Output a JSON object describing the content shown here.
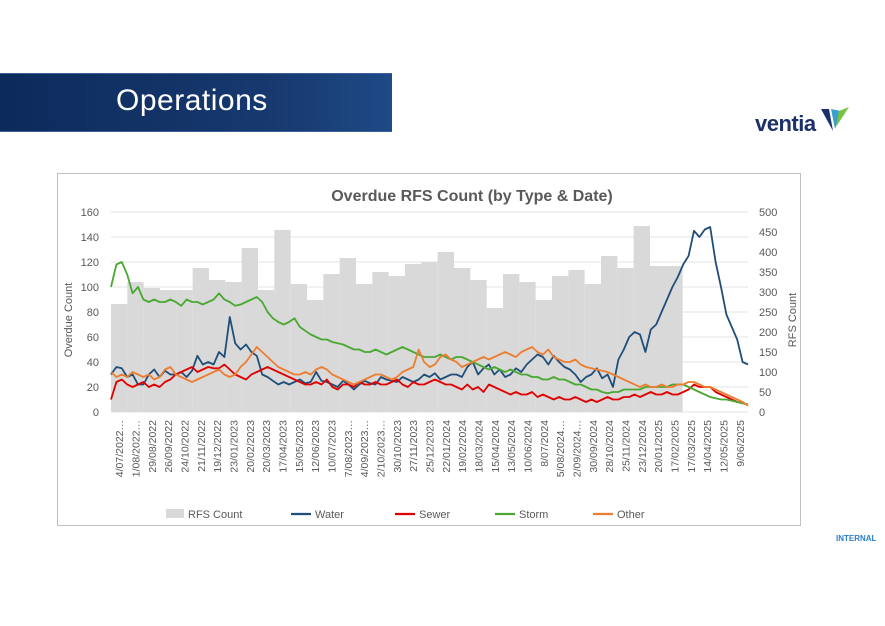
{
  "header": {
    "title": "Operations"
  },
  "logo": {
    "text": "ventia"
  },
  "footer": {
    "classification": "INTERNAL"
  },
  "colors": {
    "banner": "#17396f",
    "rfs": "#d9d9d9",
    "water": "#1f4e79",
    "sewer": "#e00000",
    "storm": "#4aa832",
    "other": "#ed7d31"
  },
  "chart_data": {
    "type": "bar",
    "title": "Overdue RFS Count (by Type & Date)",
    "ylabel": "Overdue Count",
    "y2label": "RFS Count",
    "ylim": [
      0,
      160
    ],
    "y2lim": [
      0,
      500
    ],
    "yticks": [
      0,
      20,
      40,
      60,
      80,
      100,
      120,
      140,
      160
    ],
    "y2ticks": [
      0,
      50,
      100,
      150,
      200,
      250,
      300,
      350,
      400,
      450,
      500
    ],
    "x_tick_labels": [
      "4/07/2022…",
      "1/08/2022…",
      "29/08/2022",
      "26/09/2022",
      "24/10/2022",
      "21/11/2022",
      "19/12/2022",
      "23/01/2023",
      "20/02/2023",
      "20/03/2023",
      "17/04/2023",
      "15/05/2023",
      "12/06/2023",
      "10/07/2023",
      "7/08/2023…",
      "4/09/2023…",
      "2/10/2023…",
      "30/10/2023",
      "27/11/2023",
      "25/12/2023",
      "22/01/2024",
      "19/02/2024",
      "18/03/2024",
      "15/04/2024",
      "13/05/2024",
      "10/06/2024",
      "8/07/2024",
      "5/08/2024…",
      "2/09/2024…",
      "30/09/2024",
      "28/10/2024",
      "25/11/2024",
      "23/12/2024",
      "20/01/2025",
      "17/02/2025",
      "17/03/2025",
      "14/04/2025",
      "12/05/2025",
      "9/06/2025"
    ],
    "legend_position": "bottom",
    "grid": true,
    "series": [
      {
        "name": "RFS Count",
        "type": "bar",
        "axis": "right",
        "values": [
          270,
          325,
          310,
          305,
          305,
          360,
          330,
          325,
          410,
          305,
          455,
          320,
          280,
          345,
          385,
          320,
          350,
          340,
          370,
          375,
          400,
          360,
          330,
          260,
          345,
          325,
          280,
          340,
          355,
          320,
          390,
          360,
          465,
          365,
          365,
          0,
          0,
          0,
          0
        ]
      },
      {
        "name": "Water",
        "type": "line",
        "axis": "left",
        "values": [
          30,
          36,
          35,
          28,
          30,
          22,
          22,
          30,
          34,
          28,
          33,
          30,
          30,
          32,
          28,
          33,
          45,
          38,
          40,
          38,
          48,
          44,
          76,
          55,
          50,
          54,
          48,
          45,
          30,
          28,
          25,
          22,
          24,
          22,
          24,
          26,
          23,
          24,
          32,
          25,
          24,
          22,
          20,
          25,
          22,
          18,
          22,
          25,
          23,
          22,
          28,
          26,
          25,
          24,
          28,
          26,
          24,
          26,
          30,
          28,
          31,
          26,
          28,
          30,
          30,
          28,
          36,
          40,
          30,
          35,
          38,
          30,
          34,
          28,
          30,
          35,
          32,
          38,
          42,
          46,
          44,
          38,
          45,
          40,
          36,
          34,
          30,
          24,
          28,
          30,
          35,
          27,
          30,
          20,
          42,
          50,
          60,
          64,
          62,
          48,
          66,
          70,
          80,
          90,
          100,
          108,
          118,
          125,
          145,
          140,
          146,
          148,
          120,
          100,
          78,
          68,
          58,
          40,
          38
        ]
      },
      {
        "name": "Sewer",
        "type": "line",
        "axis": "left",
        "values": [
          10,
          24,
          26,
          22,
          20,
          22,
          24,
          20,
          22,
          20,
          24,
          26,
          30,
          32,
          34,
          36,
          32,
          34,
          36,
          35,
          35,
          38,
          34,
          30,
          28,
          26,
          30,
          32,
          34,
          36,
          34,
          32,
          30,
          28,
          26,
          24,
          22,
          22,
          24,
          22,
          26,
          20,
          18,
          22,
          22,
          20,
          24,
          22,
          22,
          24,
          22,
          22,
          24,
          26,
          22,
          20,
          24,
          22,
          22,
          24,
          26,
          24,
          22,
          22,
          20,
          18,
          22,
          18,
          20,
          16,
          22,
          20,
          18,
          16,
          14,
          16,
          14,
          14,
          16,
          12,
          14,
          12,
          10,
          12,
          10,
          10,
          12,
          10,
          8,
          10,
          8,
          10,
          12,
          10,
          10,
          12,
          12,
          14,
          12,
          14,
          16,
          14,
          14,
          16,
          14,
          14,
          16,
          18,
          22,
          20,
          20,
          20,
          16,
          14,
          12,
          10,
          8,
          7,
          6
        ]
      },
      {
        "name": "Storm",
        "type": "line",
        "axis": "left",
        "values": [
          100,
          118,
          120,
          110,
          95,
          100,
          90,
          88,
          90,
          88,
          88,
          90,
          88,
          85,
          90,
          88,
          88,
          86,
          88,
          90,
          95,
          90,
          88,
          85,
          86,
          88,
          90,
          92,
          88,
          80,
          75,
          72,
          70,
          72,
          75,
          68,
          65,
          62,
          60,
          58,
          58,
          56,
          55,
          54,
          52,
          50,
          50,
          48,
          48,
          50,
          48,
          46,
          48,
          50,
          52,
          50,
          48,
          46,
          44,
          44,
          44,
          46,
          44,
          42,
          44,
          44,
          42,
          40,
          38,
          36,
          34,
          36,
          34,
          32,
          34,
          32,
          30,
          30,
          28,
          28,
          26,
          26,
          28,
          26,
          26,
          24,
          22,
          22,
          20,
          18,
          18,
          16,
          15,
          16,
          16,
          18,
          18,
          18,
          18,
          20,
          20,
          20,
          20,
          20,
          22,
          22,
          22,
          20,
          18,
          16,
          14,
          12,
          11,
          10,
          10,
          9,
          8,
          7,
          6
        ]
      },
      {
        "name": "Other",
        "type": "line",
        "axis": "left",
        "values": [
          32,
          28,
          30,
          28,
          32,
          30,
          28,
          30,
          26,
          28,
          34,
          36,
          30,
          28,
          26,
          24,
          26,
          28,
          30,
          32,
          34,
          30,
          28,
          30,
          36,
          40,
          46,
          52,
          48,
          44,
          40,
          36,
          34,
          32,
          30,
          30,
          32,
          30,
          34,
          36,
          34,
          30,
          28,
          26,
          24,
          22,
          24,
          26,
          28,
          30,
          30,
          28,
          26,
          28,
          32,
          34,
          36,
          50,
          40,
          36,
          38,
          44,
          46,
          42,
          40,
          36,
          38,
          40,
          42,
          44,
          42,
          44,
          46,
          48,
          46,
          44,
          48,
          50,
          52,
          48,
          46,
          50,
          44,
          42,
          40,
          40,
          42,
          38,
          36,
          35,
          34,
          33,
          32,
          30,
          28,
          26,
          24,
          22,
          20,
          22,
          20,
          20,
          22,
          20,
          20,
          22,
          22,
          24,
          24,
          22,
          20,
          20,
          18,
          16,
          14,
          12,
          10,
          8,
          5
        ]
      }
    ]
  }
}
